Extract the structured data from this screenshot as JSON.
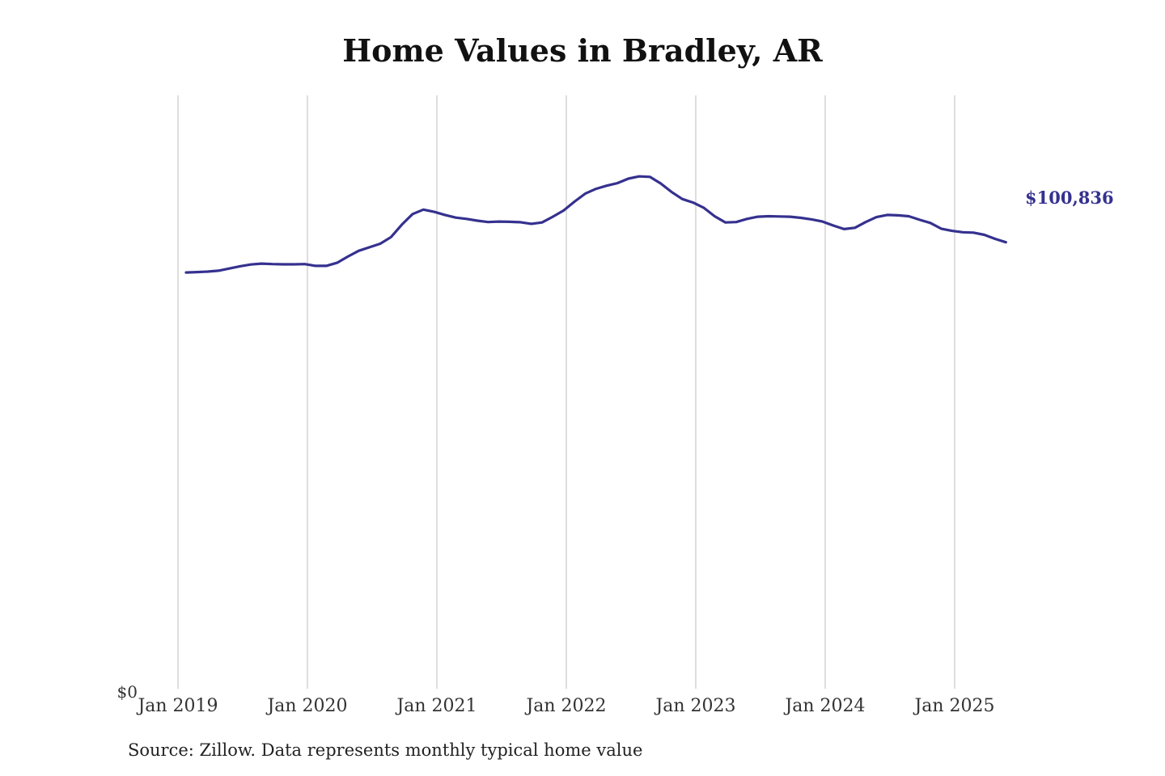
{
  "chart_data": {
    "type": "line",
    "title": "Home Values in Bradley, AR",
    "source_note": "Source: Zillow. Data represents monthly typical home value",
    "x_ticks": [
      "Jan 2019",
      "Jan 2020",
      "Jan 2021",
      "Jan 2022",
      "Jan 2023",
      "Jan 2024",
      "Jan 2025"
    ],
    "y_tick_label": "$0",
    "ylim": [
      0,
      134000
    ],
    "grid": "vertical",
    "line_color": "#35318f",
    "end_label": "$100,836",
    "series": [
      {
        "x_start": "2019-01",
        "values": [
          94000,
          94100,
          94200,
          94400,
          94900,
          95400,
          95800,
          96000,
          95900,
          95850,
          95850,
          95900,
          95500,
          95500,
          96200,
          97600,
          98900,
          99700,
          100500,
          102000,
          104800,
          107200,
          108200,
          107700,
          107000,
          106400,
          106100,
          105700,
          105400,
          105500,
          105450,
          105350,
          105000,
          105300,
          106600,
          108000,
          110000,
          111800,
          112900,
          113600,
          114200,
          115200,
          115700,
          115600,
          114100,
          112200,
          110600,
          109800,
          108600,
          106700,
          105300,
          105400,
          106100,
          106600,
          106700,
          106650,
          106600,
          106350,
          106000,
          105500,
          104600,
          103800,
          104100,
          105400,
          106500,
          107000,
          106900,
          106700,
          105900,
          105200,
          103900,
          103400,
          103100,
          103000,
          102500,
          101600,
          100836
        ],
        "end_value": 100836
      }
    ]
  }
}
